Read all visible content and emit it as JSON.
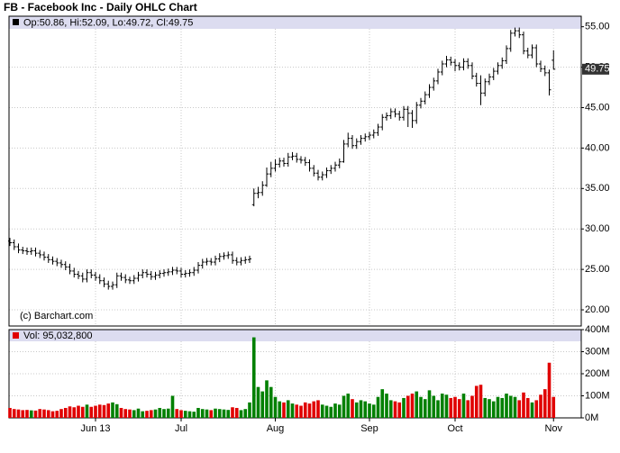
{
  "chart_data": [
    {
      "type": "ohlc",
      "title": "FB - Facebook Inc - Daily OHLC Chart",
      "header": "Op:50.86, Hi:52.09, Lo:49.72, Cl:49.75",
      "credit": "(c) Barchart.com",
      "last_price_label": "49.75",
      "color": "#000000",
      "grid": true,
      "categories": [
        null,
        null,
        null,
        null,
        null,
        null,
        null,
        null,
        null,
        null,
        null,
        null,
        null,
        null,
        null,
        null,
        null,
        null,
        null,
        null,
        "Jun 13",
        null,
        null,
        null,
        null,
        null,
        null,
        null,
        null,
        null,
        null,
        null,
        null,
        null,
        null,
        null,
        null,
        null,
        null,
        null,
        "Jul",
        null,
        null,
        null,
        null,
        null,
        null,
        null,
        null,
        null,
        null,
        null,
        null,
        null,
        null,
        null,
        null,
        null,
        null,
        null,
        null,
        null,
        "Aug",
        null,
        null,
        null,
        null,
        null,
        null,
        null,
        null,
        null,
        null,
        null,
        null,
        null,
        null,
        null,
        null,
        null,
        null,
        null,
        null,
        null,
        "Sep",
        null,
        null,
        null,
        null,
        null,
        null,
        null,
        null,
        null,
        null,
        null,
        null,
        null,
        null,
        null,
        null,
        null,
        null,
        null,
        "Oct",
        null,
        null,
        null,
        null,
        null,
        null,
        null,
        null,
        null,
        null,
        null,
        null,
        null,
        null,
        null,
        null,
        null,
        null,
        null,
        null,
        null,
        null,
        "Nov"
      ],
      "open": [
        28.5,
        28.3,
        27.8,
        27.4,
        27.3,
        27.2,
        27.3,
        27.0,
        26.8,
        26.5,
        26.2,
        26.0,
        25.8,
        25.6,
        25.3,
        24.8,
        24.4,
        24.2,
        23.8,
        24.6,
        24.3,
        24.0,
        23.6,
        23.2,
        22.9,
        23.1,
        24.2,
        24.0,
        23.7,
        23.6,
        23.9,
        24.3,
        24.6,
        24.4,
        24.1,
        24.3,
        24.5,
        24.6,
        24.7,
        24.9,
        24.8,
        24.4,
        24.5,
        24.6,
        24.9,
        25.5,
        25.9,
        26.0,
        25.9,
        26.3,
        26.6,
        26.7,
        26.8,
        26.1,
        25.9,
        26.1,
        26.2,
        33.0,
        34.4,
        34.5,
        35.4,
        36.8,
        37.5,
        38.0,
        38.4,
        38.1,
        38.9,
        39.0,
        38.6,
        38.5,
        38.2,
        37.5,
        36.9,
        36.4,
        36.7,
        37.2,
        37.5,
        37.9,
        38.3,
        40.5,
        41.2,
        40.3,
        40.8,
        41.2,
        41.4,
        41.6,
        41.9,
        42.6,
        43.8,
        44.0,
        44.5,
        44.2,
        43.8,
        44.8,
        44.3,
        43.4,
        45.3,
        45.8,
        46.6,
        47.5,
        48.3,
        49.4,
        50.4,
        50.9,
        50.6,
        50.2,
        50.0,
        50.7,
        50.2,
        48.9,
        48.0,
        46.8,
        48.2,
        48.8,
        49.5,
        50.2,
        50.8,
        52.3,
        54.2,
        54.5,
        54.0,
        52.0,
        51.5,
        52.4,
        50.4,
        49.8,
        49.3,
        50.86
      ],
      "high": [
        28.9,
        28.7,
        28.2,
        27.8,
        27.7,
        27.7,
        27.7,
        27.4,
        27.2,
        26.9,
        26.6,
        26.4,
        26.2,
        26.0,
        25.7,
        25.2,
        24.8,
        24.6,
        25.0,
        25.0,
        24.7,
        24.4,
        24.0,
        23.6,
        23.5,
        24.6,
        24.6,
        24.4,
        24.1,
        24.3,
        24.7,
        25.0,
        25.0,
        24.8,
        24.7,
        24.9,
        25.0,
        25.1,
        25.3,
        25.3,
        25.2,
        24.9,
        25.0,
        25.3,
        25.9,
        26.3,
        26.4,
        26.4,
        26.7,
        27.0,
        27.1,
        27.2,
        27.2,
        26.5,
        26.5,
        26.6,
        26.7,
        35.0,
        35.2,
        35.9,
        37.6,
        38.3,
        38.6,
        38.8,
        38.8,
        39.4,
        39.5,
        39.4,
        39.0,
        38.9,
        38.6,
        37.9,
        37.3,
        37.1,
        37.6,
        37.9,
        38.3,
        38.7,
        41.0,
        41.9,
        41.6,
        41.2,
        41.6,
        41.8,
        42.0,
        42.3,
        43.0,
        44.2,
        44.4,
        44.9,
        44.9,
        44.6,
        45.2,
        45.2,
        44.7,
        45.7,
        46.2,
        47.0,
        47.9,
        48.7,
        49.8,
        50.8,
        51.4,
        51.3,
        51.0,
        50.6,
        51.1,
        51.1,
        50.6,
        49.3,
        49.0,
        48.6,
        49.2,
        49.9,
        50.6,
        51.2,
        52.7,
        54.6,
        54.9,
        54.9,
        54.4,
        52.4,
        52.8,
        52.8,
        50.8,
        50.2,
        49.7,
        52.09
      ],
      "low": [
        27.9,
        27.4,
        27.0,
        26.9,
        26.8,
        26.8,
        26.6,
        26.4,
        26.1,
        25.8,
        25.6,
        25.4,
        25.2,
        24.9,
        24.4,
        24.0,
        23.8,
        23.4,
        23.4,
        23.9,
        23.6,
        23.2,
        22.8,
        22.5,
        22.5,
        22.7,
        23.6,
        23.3,
        23.2,
        23.2,
        23.5,
        23.9,
        24.0,
        23.7,
        23.7,
        23.9,
        24.1,
        24.2,
        24.3,
        24.4,
        24.0,
        24.0,
        24.1,
        24.2,
        24.5,
        25.1,
        25.5,
        25.5,
        25.5,
        25.9,
        26.2,
        26.3,
        25.7,
        25.5,
        25.5,
        25.7,
        25.8,
        32.8,
        33.8,
        34.1,
        35.2,
        36.4,
        37.1,
        37.6,
        37.7,
        37.7,
        38.5,
        38.2,
        38.1,
        37.8,
        37.1,
        36.5,
        36.0,
        36.0,
        36.3,
        36.8,
        37.1,
        37.5,
        38.2,
        40.1,
        39.9,
        39.9,
        40.4,
        40.8,
        41.0,
        41.2,
        41.5,
        42.2,
        43.4,
        43.6,
        43.8,
        43.4,
        43.4,
        42.6,
        42.5,
        43.0,
        44.9,
        45.4,
        46.2,
        47.1,
        47.9,
        49.0,
        50.0,
        50.2,
        49.5,
        49.6,
        49.6,
        49.8,
        48.5,
        47.6,
        45.3,
        46.4,
        47.8,
        48.4,
        49.1,
        49.8,
        50.4,
        51.9,
        53.8,
        53.6,
        51.6,
        51.1,
        51.1,
        50.0,
        49.4,
        48.9,
        46.5,
        49.72
      ],
      "close": [
        28.3,
        27.8,
        27.4,
        27.3,
        27.2,
        27.3,
        27.0,
        26.8,
        26.5,
        26.2,
        26.0,
        25.8,
        25.6,
        25.3,
        24.8,
        24.4,
        24.2,
        23.8,
        24.6,
        24.3,
        24.0,
        23.6,
        23.2,
        22.9,
        23.1,
        24.2,
        24.0,
        23.7,
        23.6,
        23.9,
        24.3,
        24.6,
        24.4,
        24.1,
        24.3,
        24.5,
        24.6,
        24.7,
        24.9,
        24.8,
        24.4,
        24.5,
        24.6,
        24.9,
        25.5,
        25.9,
        26.0,
        25.9,
        26.3,
        26.6,
        26.7,
        26.8,
        26.1,
        25.9,
        26.1,
        26.2,
        26.3,
        34.4,
        34.5,
        35.4,
        36.8,
        37.5,
        38.0,
        38.4,
        38.1,
        38.9,
        39.0,
        38.6,
        38.5,
        38.2,
        37.5,
        36.9,
        36.4,
        36.7,
        37.2,
        37.5,
        37.9,
        38.3,
        40.5,
        41.2,
        40.3,
        40.8,
        41.2,
        41.4,
        41.6,
        41.9,
        42.6,
        43.8,
        44.0,
        44.5,
        44.2,
        43.8,
        44.8,
        44.3,
        43.4,
        45.3,
        45.8,
        46.6,
        47.5,
        48.3,
        49.4,
        50.4,
        50.9,
        50.6,
        50.2,
        50.0,
        50.7,
        50.2,
        48.9,
        48.0,
        46.8,
        48.2,
        48.8,
        49.5,
        50.2,
        50.8,
        52.3,
        54.2,
        54.5,
        54.0,
        52.0,
        51.5,
        52.4,
        50.4,
        49.8,
        49.3,
        47.2,
        49.75
      ],
      "ylim": [
        18,
        56.3
      ],
      "yticks": [
        {
          "value": 20,
          "label": "20.00"
        },
        {
          "value": 25,
          "label": "25.00"
        },
        {
          "value": 30,
          "label": "30.00"
        },
        {
          "value": 35,
          "label": "35.00"
        },
        {
          "value": 40,
          "label": "40.00"
        },
        {
          "value": 45,
          "label": "45.00"
        },
        {
          "value": 50,
          "label": "50.00"
        },
        {
          "value": 55,
          "label": "55.00"
        }
      ]
    },
    {
      "type": "bar",
      "header": "Vol: 95,032,800",
      "up_color": "#008000",
      "down_color": "#e00000",
      "grid": true,
      "values": [
        45,
        40,
        38,
        35,
        36,
        34,
        33,
        40,
        38,
        35,
        30,
        32,
        40,
        45,
        52,
        48,
        55,
        50,
        60,
        50,
        55,
        60,
        58,
        65,
        70,
        62,
        45,
        40,
        38,
        35,
        42,
        30,
        32,
        35,
        38,
        45,
        40,
        42,
        100,
        40,
        35,
        32,
        30,
        28,
        45,
        40,
        38,
        35,
        42,
        40,
        38,
        36,
        48,
        45,
        35,
        40,
        70,
        365,
        140,
        120,
        170,
        140,
        95,
        75,
        70,
        80,
        65,
        60,
        55,
        70,
        65,
        75,
        80,
        60,
        55,
        50,
        65,
        60,
        100,
        110,
        85,
        70,
        80,
        75,
        65,
        60,
        95,
        130,
        110,
        80,
        75,
        70,
        90,
        100,
        110,
        120,
        95,
        85,
        125,
        100,
        80,
        110,
        105,
        90,
        95,
        85,
        110,
        80,
        100,
        145,
        150,
        90,
        85,
        75,
        95,
        90,
        110,
        100,
        95,
        80,
        115,
        90,
        70,
        80,
        105,
        130,
        250,
        95.0328
      ],
      "ylim": [
        0,
        400
      ],
      "yticks": [
        {
          "value": 0,
          "label": "0M"
        },
        {
          "value": 100,
          "label": "100M"
        },
        {
          "value": 200,
          "label": "200M"
        },
        {
          "value": 300,
          "label": "300M"
        },
        {
          "value": 400,
          "label": "400M"
        }
      ]
    }
  ]
}
